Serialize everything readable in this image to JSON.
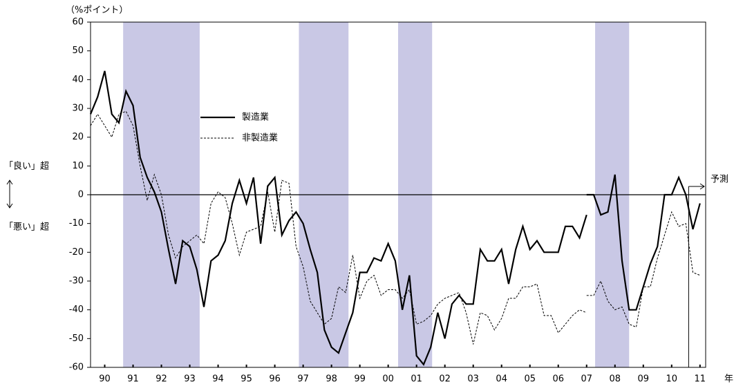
{
  "chart_data": {
    "type": "line",
    "y_unit": "（%ポイント）",
    "x_unit": "年",
    "upper_note": "「良い」超",
    "lower_note": "「悪い」超",
    "forecast": {
      "text": "予測",
      "x": 2011.1
    },
    "xlim": [
      1990,
      2011.7
    ],
    "ylim": [
      -60,
      60
    ],
    "yticks": [
      60,
      50,
      40,
      30,
      20,
      10,
      0,
      -10,
      -20,
      -30,
      -40,
      -50,
      -60
    ],
    "xticks": [
      {
        "value": 1990.5,
        "label": "90"
      },
      {
        "value": 1991.5,
        "label": "91"
      },
      {
        "value": 1992.5,
        "label": "92"
      },
      {
        "value": 1993.5,
        "label": "93"
      },
      {
        "value": 1994.5,
        "label": "94"
      },
      {
        "value": 1995.5,
        "label": "95"
      },
      {
        "value": 1996.5,
        "label": "96"
      },
      {
        "value": 1997.5,
        "label": "97"
      },
      {
        "value": 1998.5,
        "label": "98"
      },
      {
        "value": 1999.5,
        "label": "99"
      },
      {
        "value": 2000.5,
        "label": "00"
      },
      {
        "value": 2001.5,
        "label": "01"
      },
      {
        "value": 2002.5,
        "label": "02"
      },
      {
        "value": 2003.5,
        "label": "03"
      },
      {
        "value": 2004.5,
        "label": "04"
      },
      {
        "value": 2005.5,
        "label": "05"
      },
      {
        "value": 2006.5,
        "label": "06"
      },
      {
        "value": 2007.5,
        "label": "07"
      },
      {
        "value": 2008.5,
        "label": "08"
      },
      {
        "value": 2009.5,
        "label": "09"
      },
      {
        "value": 2010.5,
        "label": "10"
      },
      {
        "value": 2011.5,
        "label": "11"
      }
    ],
    "shaded_periods": [
      [
        1991.15,
        1993.85
      ],
      [
        1997.35,
        1999.1
      ],
      [
        2000.85,
        2002.05
      ],
      [
        2007.8,
        2009.0
      ]
    ],
    "shade_color": "#c9c8e5",
    "zero_line": 0,
    "series": [
      {
        "name": "製造業",
        "color": "#000000",
        "dash": false,
        "x": [
          1990,
          1990.25,
          1990.5,
          1990.75,
          1991,
          1991.25,
          1991.5,
          1991.75,
          1992,
          1992.25,
          1992.5,
          1992.75,
          1993,
          1993.25,
          1993.5,
          1993.75,
          1994,
          1994.25,
          1994.5,
          1994.75,
          1995,
          1995.25,
          1995.5,
          1995.75,
          1996,
          1996.25,
          1996.5,
          1996.75,
          1997,
          1997.25,
          1997.5,
          1997.75,
          1998,
          1998.25,
          1998.5,
          1998.75,
          1999,
          1999.25,
          1999.5,
          1999.75,
          2000,
          2000.25,
          2000.5,
          2000.75,
          2001,
          2001.25,
          2001.5,
          2001.75,
          2002,
          2002.25,
          2002.5,
          2002.75,
          2003,
          2003.25,
          2003.5,
          2003.75,
          2004,
          2004.25,
          2004.5,
          2004.75,
          2005,
          2005.25,
          2005.5,
          2005.75,
          2006,
          2006.25,
          2006.5,
          2006.75,
          2007,
          2007.25,
          2007.5,
          2007.5,
          2007.5,
          2007.75,
          2008,
          2008.25,
          2008.5,
          2008.75,
          2009,
          2009.25,
          2009.5,
          2009.75,
          2010,
          2010.25,
          2010.5,
          2010.75,
          2011,
          2011.25,
          2011.5
        ],
        "values": [
          28,
          34,
          43,
          28,
          25,
          36,
          31,
          13,
          6,
          1,
          -6,
          -19,
          -31,
          -16,
          -18,
          -26,
          -39,
          -23,
          -21,
          -16,
          -3,
          5,
          -3,
          6,
          -17,
          3,
          6,
          -14,
          -9,
          -6,
          -10,
          -19,
          -27,
          -47,
          -53,
          -55,
          -48,
          -41,
          -27,
          -27,
          -22,
          -23,
          -17,
          -23,
          -40,
          -28,
          -56,
          -59,
          -53,
          -41,
          -50,
          -38,
          -35,
          -38,
          -38,
          -19,
          -23,
          -23,
          -19,
          -31,
          -19,
          -11,
          -19,
          -16,
          -20,
          -20,
          -20,
          -11,
          -11,
          -15,
          -7,
          null,
          0,
          0,
          -7,
          -6,
          7,
          -23,
          -40,
          -40,
          -32,
          -24,
          -18,
          0,
          0,
          6,
          0,
          -12,
          -3
        ]
      },
      {
        "name": "非製造業",
        "color": "#000000",
        "dash": true,
        "x": [
          1990,
          1990.25,
          1990.5,
          1990.75,
          1991,
          1991.25,
          1991.5,
          1991.75,
          1992,
          1992.25,
          1992.5,
          1992.75,
          1993,
          1993.25,
          1993.5,
          1993.75,
          1994,
          1994.25,
          1994.5,
          1994.75,
          1995,
          1995.25,
          1995.5,
          1995.75,
          1996,
          1996.25,
          1996.5,
          1996.75,
          1997,
          1997.25,
          1997.5,
          1997.75,
          1998,
          1998.25,
          1998.5,
          1998.75,
          1999,
          1999.25,
          1999.5,
          1999.75,
          2000,
          2000.25,
          2000.5,
          2000.75,
          2001,
          2001.25,
          2001.5,
          2001.75,
          2002,
          2002.25,
          2002.5,
          2002.75,
          2003,
          2003.25,
          2003.5,
          2003.75,
          2004,
          2004.25,
          2004.5,
          2004.75,
          2005,
          2005.25,
          2005.5,
          2005.75,
          2006,
          2006.25,
          2006.5,
          2006.75,
          2007,
          2007.25,
          2007.5,
          2007.5,
          2007.5,
          2007.75,
          2008,
          2008.25,
          2008.5,
          2008.75,
          2009,
          2009.25,
          2009.5,
          2009.75,
          2010,
          2010.25,
          2010.5,
          2010.75,
          2011,
          2011.25,
          2011.5
        ],
        "values": [
          24,
          28,
          24,
          20,
          28,
          29,
          24,
          10,
          -2,
          7,
          0,
          -14,
          -22,
          -18,
          -16,
          -14,
          -17,
          -3,
          1,
          -1,
          -10,
          -21,
          -13,
          -12,
          -11,
          1,
          -13,
          5,
          4,
          -18,
          -25,
          -37,
          -41,
          -45,
          -43,
          -32,
          -34,
          -21,
          -36,
          -30,
          -28,
          -35,
          -33,
          -33,
          -36,
          -33,
          -45,
          -44,
          -42,
          -38,
          -36,
          -35,
          -34,
          -41,
          -52,
          -41,
          -42,
          -47,
          -43,
          -36,
          -36,
          -32,
          -32,
          -31,
          -42,
          -42,
          -48,
          -45,
          -42,
          -40,
          -41,
          null,
          -35,
          -35,
          -30,
          -37,
          -40,
          -39,
          -45,
          -46,
          -32,
          -32,
          -22,
          -14,
          -6,
          -11,
          -10,
          -27,
          -28
        ]
      }
    ]
  }
}
